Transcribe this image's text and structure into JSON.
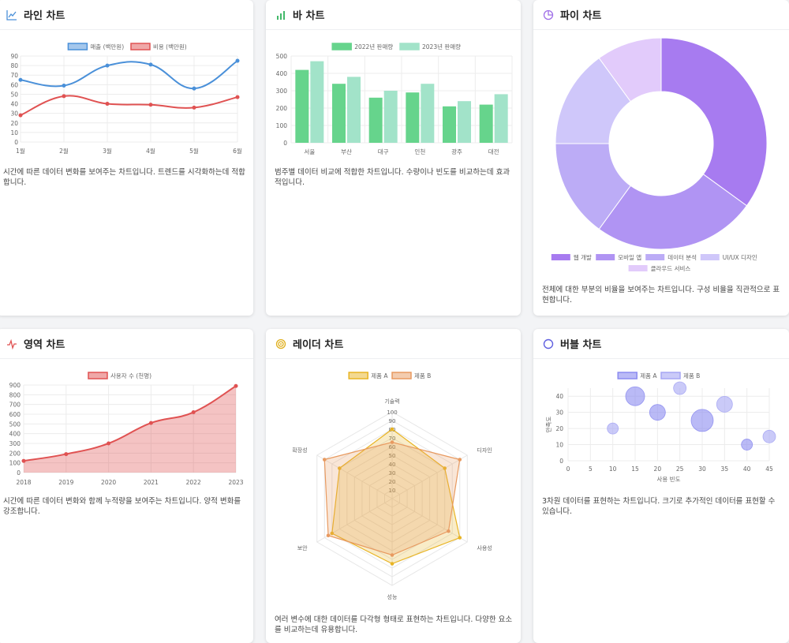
{
  "cards": [
    {
      "title": "라인 차트",
      "icon": "line-chart-icon",
      "color": "#4a90d9",
      "desc": "시간에 따른 데이터 변화를 보여주는 차트입니다. 트렌드를 시각화하는데 적합합니다."
    },
    {
      "title": "바 차트",
      "icon": "bar-chart-icon",
      "color": "#43b96a",
      "desc": "범주별 데이터 비교에 적합한 차트입니다. 수량이나 빈도를 비교하는데 효과적입니다."
    },
    {
      "title": "파이 차트",
      "icon": "pie-chart-icon",
      "color": "#a070e8",
      "desc": "전체에 대한 부분의 비율을 보여주는 차트입니다. 구성 비율을 직관적으로 표현합니다."
    },
    {
      "title": "영역 차트",
      "icon": "activity-icon",
      "color": "#e05252",
      "desc": "시간에 따른 데이터 변화와 함께 누적량을 보여주는 차트입니다. 양적 변화를 강조합니다."
    },
    {
      "title": "레이더 차트",
      "icon": "radar-icon",
      "color": "#e0b020",
      "desc": "여러 변수에 대한 데이터를 다각형 형태로 표현하는 차트입니다. 다양한 요소를 비교하는데 유용합니다."
    },
    {
      "title": "버블 차트",
      "icon": "bubble-icon",
      "color": "#6060e0",
      "desc": "3차원 데이터를 표현하는 차트입니다. 크기로 추가적인 데이터를 표현할 수 있습니다."
    }
  ],
  "chart_data": [
    {
      "type": "line",
      "categories": [
        "1월",
        "2월",
        "3월",
        "4월",
        "5월",
        "6월"
      ],
      "series": [
        {
          "name": "매출 (백만원)",
          "values": [
            65,
            59,
            80,
            81,
            56,
            85
          ],
          "color": "#4a90d9"
        },
        {
          "name": "비용 (백만원)",
          "values": [
            28,
            48,
            40,
            39,
            36,
            47
          ],
          "color": "#e05252"
        }
      ],
      "ylim": [
        0,
        90
      ],
      "yticks": [
        0,
        10,
        20,
        30,
        40,
        50,
        60,
        70,
        80,
        90
      ],
      "legend": "top"
    },
    {
      "type": "bar",
      "categories": [
        "서울",
        "부산",
        "대구",
        "인천",
        "광주",
        "대전"
      ],
      "series": [
        {
          "name": "2022년 판매량",
          "values": [
            420,
            340,
            260,
            290,
            210,
            220
          ],
          "color": "#66d48c"
        },
        {
          "name": "2023년 판매량",
          "values": [
            470,
            380,
            300,
            340,
            240,
            280
          ],
          "color": "#a2e3c9"
        }
      ],
      "ylim": [
        0,
        500
      ],
      "yticks": [
        0,
        100,
        200,
        300,
        400,
        500
      ],
      "legend": "top"
    },
    {
      "type": "pie",
      "labels": [
        "웹 개발",
        "모바일 앱",
        "데이터 분석",
        "UI/UX 디자인",
        "클라우드 서비스"
      ],
      "values": [
        35,
        25,
        15,
        15,
        10
      ],
      "colors": [
        "#a77bf0",
        "#b094f3",
        "#bcacf6",
        "#cfc7fa",
        "#e2cbfb"
      ],
      "legend": "bottom"
    },
    {
      "type": "area",
      "categories": [
        "2018",
        "2019",
        "2020",
        "2021",
        "2022",
        "2023"
      ],
      "series": [
        {
          "name": "사용자 수 (천명)",
          "values": [
            120,
            190,
            300,
            510,
            620,
            890
          ],
          "color": "#e05252"
        }
      ],
      "ylim": [
        0,
        900
      ],
      "yticks": [
        0,
        100,
        200,
        300,
        400,
        500,
        600,
        700,
        800,
        900
      ],
      "legend": "top"
    },
    {
      "type": "radar",
      "axes": [
        "기술력",
        "디자인",
        "사용성",
        "성능",
        "보안",
        "확장성"
      ],
      "series": [
        {
          "name": "제품 A",
          "values": [
            80,
            70,
            90,
            75,
            80,
            70
          ],
          "color": "#e8b424"
        },
        {
          "name": "제품 B",
          "values": [
            65,
            90,
            75,
            65,
            85,
            90
          ],
          "color": "#e89a60"
        }
      ],
      "rmax": 100,
      "ticks": [
        10,
        20,
        30,
        40,
        50,
        60,
        70,
        80,
        90,
        100
      ],
      "legend": "top"
    },
    {
      "type": "scatter",
      "subtype": "bubble",
      "xlabel": "사용 빈도",
      "ylabel": "만족도",
      "xlim": [
        0,
        45
      ],
      "ylim": [
        0,
        45
      ],
      "xticks": [
        0,
        5,
        10,
        15,
        20,
        25,
        30,
        35,
        40,
        45
      ],
      "yticks": [
        0,
        10,
        20,
        30,
        40
      ],
      "series": [
        {
          "name": "제품 A",
          "points": [
            [
              15,
              40,
              12
            ],
            [
              20,
              30,
              10
            ],
            [
              30,
              25,
              14
            ],
            [
              40,
              10,
              7
            ]
          ],
          "color": "#8c8cf0"
        },
        {
          "name": "제품 B",
          "points": [
            [
              10,
              20,
              7
            ],
            [
              25,
              45,
              8
            ],
            [
              35,
              35,
              10
            ],
            [
              45,
              15,
              8
            ]
          ],
          "color": "#a6a6f4"
        }
      ],
      "legend": "top"
    }
  ]
}
